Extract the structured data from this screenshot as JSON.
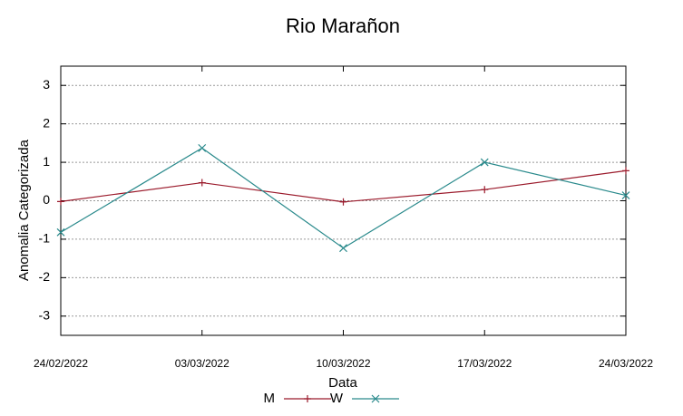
{
  "chart_data": {
    "type": "line",
    "title": "Rio Marañon",
    "x_label": "Data",
    "y_label": "Anomalia Categorizada",
    "categories": [
      "24/02/2022",
      "03/03/2022",
      "10/03/2022",
      "17/03/2022",
      "24/03/2022"
    ],
    "series": [
      {
        "name": "M",
        "color": "#9b1b2c",
        "marker": "plus",
        "values": [
          -0.02,
          0.47,
          -0.03,
          0.29,
          0.78
        ]
      },
      {
        "name": "W",
        "color": "#2a8a8c",
        "marker": "cross",
        "values": [
          -0.82,
          1.37,
          -1.23,
          1.0,
          0.14
        ]
      }
    ],
    "ylim": [
      -3.5,
      3.5
    ],
    "yticks": [
      -3,
      -2,
      -1,
      0,
      1,
      2,
      3
    ],
    "grid": true,
    "legend": "bottom"
  }
}
